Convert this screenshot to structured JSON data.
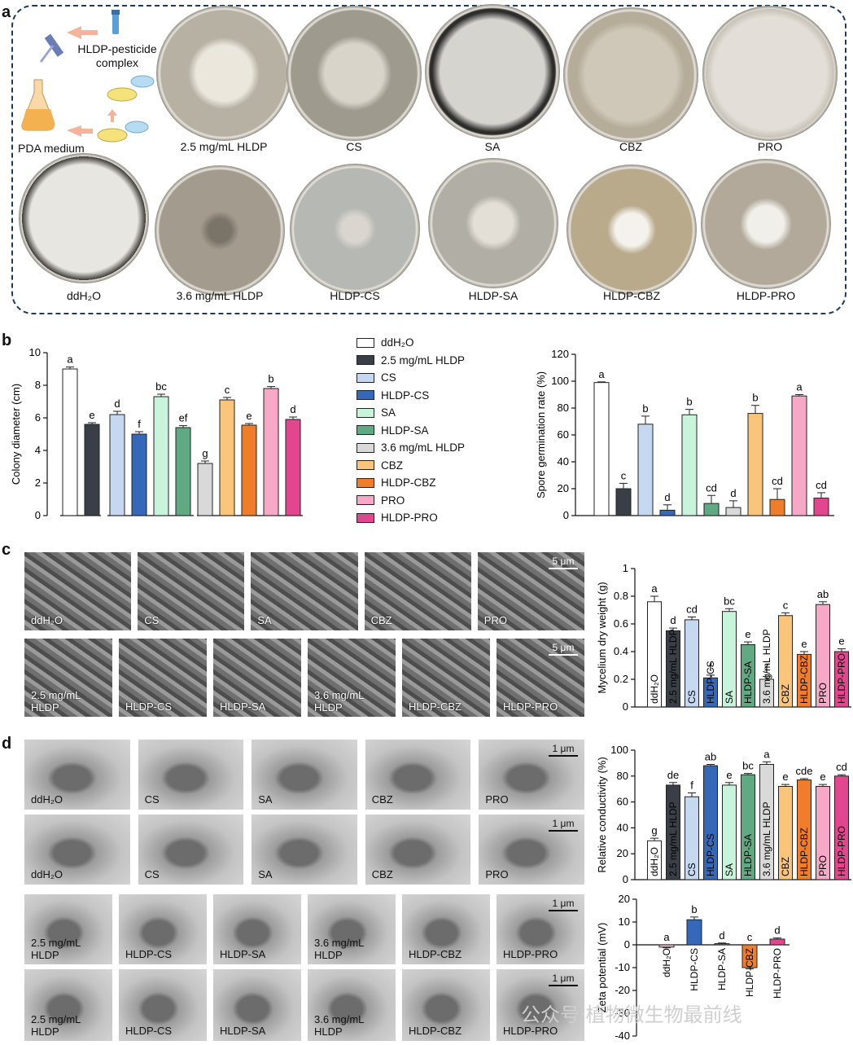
{
  "panels": {
    "a": "a",
    "b": "b",
    "c": "c",
    "d": "d"
  },
  "panel_a": {
    "schematic_labels": {
      "complex_line1": "HLDP-pesticide",
      "complex_line2": "complex",
      "medium": "PDA medium"
    },
    "top_row": [
      "2.5 mg/mL HLDP",
      "CS",
      "SA",
      "CBZ",
      "PRO"
    ],
    "bottom_row": [
      "ddH₂O",
      "3.6 mg/mL HLDP",
      "HLDP-CS",
      "HLDP-SA",
      "HLDP-CBZ",
      "HLDP-PRO"
    ]
  },
  "panel_c": {
    "scale_bar": "5 μm",
    "row1": [
      "ddH₂O",
      "CS",
      "SA",
      "CBZ",
      "PRO"
    ],
    "row2": [
      "2.5 mg/mL HLDP",
      "HLDP-CS",
      "HLDP-SA",
      "3.6 mg/mL HLDP",
      "HLDP-CBZ",
      "HLDP-PRO"
    ]
  },
  "panel_d": {
    "scale_bar": "1 μm",
    "row1": [
      "ddH₂O",
      "CS",
      "SA",
      "CBZ",
      "PRO"
    ],
    "row2": [
      "ddH₂O",
      "CS",
      "SA",
      "CBZ",
      "PRO"
    ],
    "row3": [
      "2.5 mg/mL HLDP",
      "HLDP-CS",
      "HLDP-SA",
      "3.6 mg/mL HLDP",
      "HLDP-CBZ",
      "HLDP-PRO"
    ],
    "row4": [
      "2.5 mg/mL HLDP",
      "HLDP-CS",
      "HLDP-SA",
      "3.6 mg/mL HLDP",
      "HLDP-CBZ",
      "HLDP-PRO"
    ]
  },
  "legend": [
    {
      "name": "ddH₂O",
      "color": "#ffffff"
    },
    {
      "name": "2.5 mg/mL HLDP",
      "color": "#3a3f47"
    },
    {
      "name": "CS",
      "color": "#c5d8f0"
    },
    {
      "name": "HLDP-CS",
      "color": "#3568b8"
    },
    {
      "name": "SA",
      "color": "#c9f4dc"
    },
    {
      "name": "HLDP-SA",
      "color": "#5fa983"
    },
    {
      "name": "3.6 mg/mL HLDP",
      "color": "#d9d9d9"
    },
    {
      "name": "CBZ",
      "color": "#f8c57a"
    },
    {
      "name": "HLDP-CBZ",
      "color": "#ef7d2a"
    },
    {
      "name": "PRO",
      "color": "#f7a8c6"
    },
    {
      "name": "HLDP-PRO",
      "color": "#e1468f"
    }
  ],
  "chart_data": [
    {
      "type": "bar",
      "ylabel": "Colony diameter (cm)",
      "ylim": [
        0,
        10
      ],
      "yticks": [
        0,
        2,
        4,
        6,
        8,
        10
      ],
      "categories": [
        "ddH₂O",
        "2.5 mg/mL HLDP",
        "CS",
        "HLDP-CS",
        "SA",
        "HLDP-SA",
        "3.6 mg/mL HLDP",
        "CBZ",
        "HLDP-CBZ",
        "PRO",
        "HLDP-PRO"
      ],
      "values": [
        9.0,
        5.6,
        6.2,
        5.0,
        7.3,
        5.4,
        3.2,
        7.1,
        5.55,
        7.8,
        5.9
      ],
      "errors": [
        0.12,
        0.1,
        0.2,
        0.15,
        0.15,
        0.12,
        0.15,
        0.15,
        0.1,
        0.12,
        0.15
      ],
      "letters": [
        "a",
        "e",
        "d",
        "f",
        "bc",
        "ef",
        "g",
        "c",
        "e",
        "b",
        "d"
      ]
    },
    {
      "type": "bar",
      "ylabel": "Spore germination rate (%)",
      "ylim": [
        0,
        120
      ],
      "yticks": [
        0,
        20,
        40,
        60,
        80,
        100,
        120
      ],
      "categories": [
        "ddH₂O",
        "2.5 mg/mL HLDP",
        "CS",
        "HLDP-CS",
        "SA",
        "HLDP-SA",
        "3.6 mg/mL HLDP",
        "CBZ",
        "HLDP-CBZ",
        "PRO",
        "HLDP-PRO"
      ],
      "values": [
        99,
        20,
        68,
        4,
        75,
        9,
        6,
        76,
        12,
        89,
        13
      ],
      "errors": [
        0.5,
        4,
        6,
        4,
        4,
        6,
        5,
        6,
        8,
        1,
        4
      ],
      "letters": [
        "a",
        "c",
        "b",
        "d",
        "b",
        "cd",
        "d",
        "b",
        "cd",
        "a",
        "cd"
      ]
    },
    {
      "type": "bar",
      "ylabel": "Mycelium dry weight (g)",
      "ylim": [
        0,
        1.0
      ],
      "yticks": [
        0.0,
        0.2,
        0.4,
        0.6,
        0.8,
        1.0
      ],
      "categories": [
        "ddH₂O",
        "2.5 mg/mL HLDP",
        "CS",
        "HLDP-CS",
        "SA",
        "HLDP-SA",
        "3.6 mg/mL HLDP",
        "CBZ",
        "HLDP-CBZ",
        "PRO",
        "HLDP-PRO"
      ],
      "values": [
        0.76,
        0.55,
        0.63,
        0.21,
        0.69,
        0.45,
        0.2,
        0.66,
        0.38,
        0.74,
        0.4
      ],
      "errors": [
        0.04,
        0.02,
        0.02,
        0.02,
        0.02,
        0.02,
        0.02,
        0.02,
        0.02,
        0.02,
        0.02
      ],
      "letters": [
        "a",
        "d",
        "cd",
        "f",
        "bc",
        "e",
        "f",
        "c",
        "e",
        "ab",
        "e"
      ]
    },
    {
      "type": "bar",
      "ylabel": "Relative conductivity (%)",
      "ylim": [
        0,
        100
      ],
      "yticks": [
        0,
        20,
        40,
        60,
        80,
        100
      ],
      "categories": [
        "ddH₂O",
        "2.5 mg/mL HLDP",
        "CS",
        "HLDP-CS",
        "SA",
        "HLDP-SA",
        "3.6 mg/mL HLDP",
        "CBZ",
        "HLDP-CBZ",
        "PRO",
        "HLDP-PRO"
      ],
      "values": [
        30,
        73,
        64,
        88,
        73,
        81,
        89,
        72,
        77,
        72,
        80
      ],
      "errors": [
        2,
        2,
        3,
        1,
        2,
        1,
        2,
        1.5,
        1,
        1.5,
        1
      ],
      "letters": [
        "g",
        "de",
        "f",
        "ab",
        "e",
        "bc",
        "a",
        "e",
        "cde",
        "e",
        "cd"
      ]
    },
    {
      "type": "bar",
      "ylabel": "Zeta potential (mV)",
      "ylim": [
        -40,
        20
      ],
      "yticks": [
        -40,
        -30,
        -20,
        -10,
        0,
        10,
        20
      ],
      "categories": [
        "ddH₂O",
        "HLDP-CS",
        "HLDP-SA",
        "HLDP-CBZ",
        "HLDP-PRO"
      ],
      "values": [
        -1,
        11,
        0.5,
        -10,
        2.5
      ],
      "errors": [
        0.3,
        1.2,
        0.3,
        0.5,
        0.5
      ],
      "letters": [
        "a",
        "b",
        "d",
        "c",
        "d"
      ],
      "colors": [
        "#f9c7d4",
        "#3568b8",
        "#5fa983",
        "#ef7d2a",
        "#e1468f"
      ]
    }
  ],
  "watermark": "公众号·植物微生物最前线"
}
